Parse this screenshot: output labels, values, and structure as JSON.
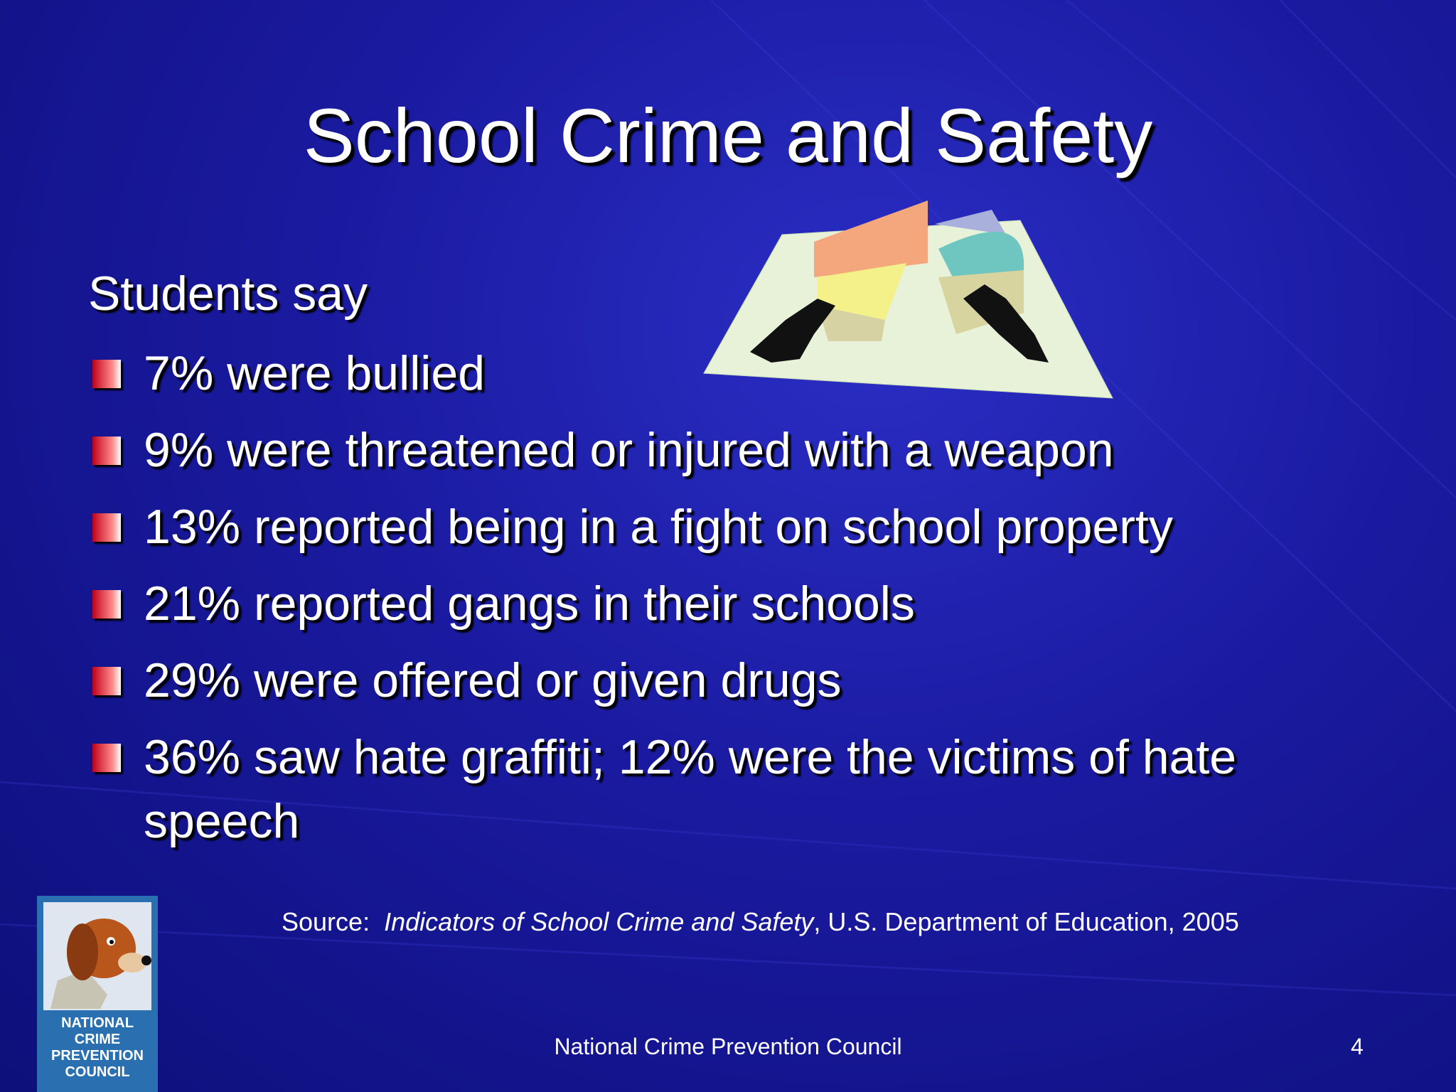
{
  "header": {
    "title": "School Crime and Safety"
  },
  "body": {
    "intro": "Students say",
    "bullets": [
      "7% were bullied",
      "9% were threatened or injured with a weapon",
      "13% reported being in a fight on school property",
      "21% reported gangs in their schools",
      "29% were offered or given drugs",
      "36% saw hate graffiti; 12% were the victims of hate speech"
    ]
  },
  "source": {
    "prefix": "Source:",
    "work": "Indicators of School Crime and Safety",
    "rest": ", U.S. Department of Education, 2005"
  },
  "logo": {
    "lines": [
      "NATIONAL",
      "CRIME",
      "PREVENTION",
      "COUNCIL"
    ]
  },
  "footer": {
    "text": "National Crime Prevention Council",
    "page": "4"
  }
}
